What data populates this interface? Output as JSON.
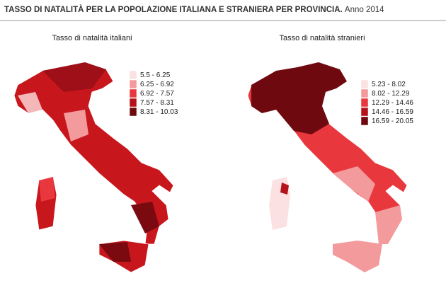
{
  "title": "TASSO DI NATALITÀ PER LA POPOLAZIONE ITALIANA E STRANIERA PER PROVINCIA.",
  "year": "Anno 2014",
  "maps": [
    {
      "title": "Tasso di natalità italiani",
      "legend": [
        {
          "label": "5.5 - 6.25",
          "color": "#fbe1e1"
        },
        {
          "label": "6.25 - 6.92",
          "color": "#f39a9c"
        },
        {
          "label": "6.92 - 7.57",
          "color": "#e8383d"
        },
        {
          "label": "7.57 - 8.31",
          "color": "#b5121b"
        },
        {
          "label": "8.31 - 10.03",
          "color": "#6e0a0f"
        }
      ]
    },
    {
      "title": "Tasso di natalità  stranieri",
      "legend": [
        {
          "label": "5.23 - 8.02",
          "color": "#fbe1e1"
        },
        {
          "label": "8.02 - 12.29",
          "color": "#f39a9c"
        },
        {
          "label": "12.29 - 14.46",
          "color": "#e8383d"
        },
        {
          "label": "14.46 - 16.59",
          "color": "#b5121b"
        },
        {
          "label": "16.59 - 20.05",
          "color": "#6e0a0f"
        }
      ]
    }
  ]
}
